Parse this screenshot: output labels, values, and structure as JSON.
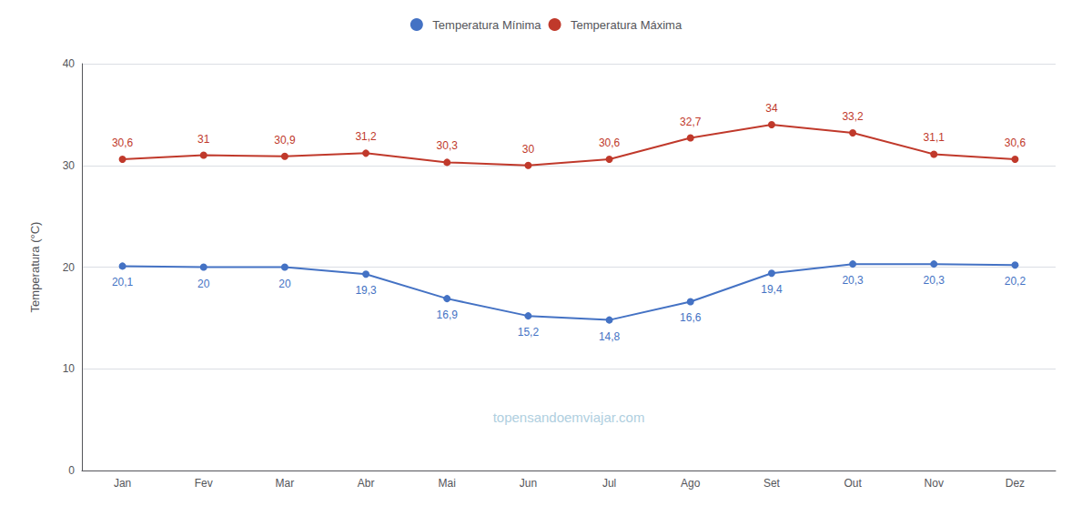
{
  "chart_data": {
    "type": "line",
    "ylabel": "Temperatura (°C)",
    "categories": [
      "Jan",
      "Fev",
      "Mar",
      "Abr",
      "Mai",
      "Jun",
      "Jul",
      "Ago",
      "Set",
      "Out",
      "Nov",
      "Dez"
    ],
    "series": [
      {
        "name": "Temperatura Mínima",
        "color": "#4472c4",
        "marker": "circle",
        "values": [
          20.1,
          20.0,
          20.0,
          19.3,
          16.9,
          15.2,
          14.8,
          16.6,
          19.4,
          20.3,
          20.3,
          20.2
        ],
        "value_labels": [
          "20,1",
          "20",
          "20",
          "19,3",
          "16,9",
          "15,2",
          "14,8",
          "16,6",
          "19,4",
          "20,3",
          "20,3",
          "20,2"
        ]
      },
      {
        "name": "Temperatura Máxima",
        "color": "#c0392b",
        "marker": "circle",
        "values": [
          30.6,
          31.0,
          30.9,
          31.2,
          30.3,
          30.0,
          30.6,
          32.7,
          34.0,
          33.2,
          31.1,
          30.6
        ],
        "value_labels": [
          "30,6",
          "31",
          "30,9",
          "31,2",
          "30,3",
          "30",
          "30,6",
          "32,7",
          "34",
          "33,2",
          "31,1",
          "30,6"
        ]
      }
    ],
    "ylim": [
      0,
      40
    ],
    "yticks": [
      0,
      10,
      20,
      30,
      40
    ],
    "grid": true,
    "legend": "top",
    "data_labels": true,
    "annotations": [
      {
        "text": "topensandoemviajar.com",
        "color": "#b0cfe0"
      }
    ]
  }
}
